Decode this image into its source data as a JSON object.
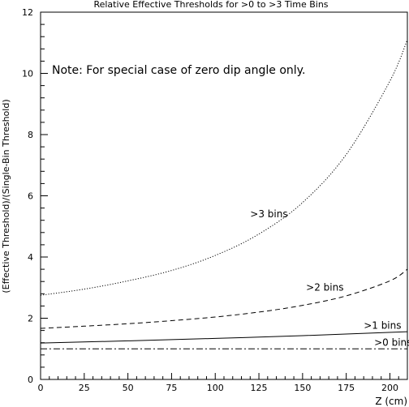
{
  "chart_data": {
    "type": "line",
    "title": "Relative Effective Thresholds for >0 to >3 Time Bins",
    "xlabel": "Z (cm)",
    "ylabel": "(Effective Threshold)/(Single-Bin Threshold)",
    "note": "Note: For special case of zero dip angle only.",
    "xlim": [
      0,
      210
    ],
    "ylim": [
      0,
      12
    ],
    "xticks": [
      0,
      25,
      50,
      75,
      100,
      125,
      150,
      175,
      200
    ],
    "yticks": [
      0,
      2,
      4,
      6,
      8,
      10,
      12
    ],
    "grid": false,
    "series": [
      {
        "name": ">3 bins",
        "style": "dotted",
        "x": [
          0,
          25,
          50,
          75,
          100,
          125,
          150,
          175,
          200,
          210
        ],
        "y": [
          2.75,
          2.95,
          3.22,
          3.56,
          4.05,
          4.75,
          5.78,
          7.35,
          9.75,
          11.1
        ],
        "label_at": [
          120,
          5.3
        ]
      },
      {
        "name": ">2 bins",
        "style": "dashed",
        "x": [
          0,
          25,
          50,
          75,
          100,
          125,
          150,
          175,
          200,
          210
        ],
        "y": [
          1.67,
          1.74,
          1.82,
          1.92,
          2.04,
          2.2,
          2.42,
          2.73,
          3.22,
          3.6
        ],
        "label_at": [
          152,
          2.9
        ]
      },
      {
        "name": ">1 bins",
        "style": "solid",
        "x": [
          0,
          50,
          100,
          150,
          210
        ],
        "y": [
          1.19,
          1.26,
          1.34,
          1.43,
          1.56
        ],
        "label_at": [
          185,
          1.65
        ]
      },
      {
        "name": ">0 bins",
        "style": "dashdot",
        "x": [
          0,
          210
        ],
        "y": [
          1.0,
          1.0
        ],
        "label_at": [
          191,
          1.1
        ]
      }
    ]
  }
}
